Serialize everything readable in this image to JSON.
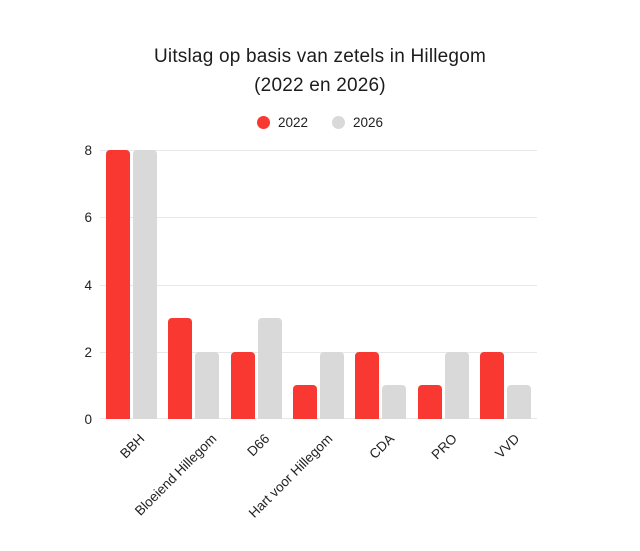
{
  "title": {
    "line1": "Uitslag op basis van zetels in Hillegom",
    "line2": "(2022 en 2026)"
  },
  "chart_data": {
    "type": "bar",
    "title": "Uitslag op basis van zetels in Hillegom (2022 en 2026)",
    "categories": [
      "BBH",
      "Bloeiend Hillegom",
      "D66",
      "Hart voor Hillegom",
      "CDA",
      "PRO",
      "VVD"
    ],
    "series": [
      {
        "name": "2022",
        "color": "#f93832",
        "values": [
          8,
          3,
          2,
          1,
          2,
          1,
          2
        ]
      },
      {
        "name": "2026",
        "color": "#d9d9d9",
        "values": [
          8,
          2,
          3,
          2,
          1,
          2,
          1
        ]
      }
    ],
    "xlabel": "",
    "ylabel": "",
    "ylim": [
      0,
      8
    ],
    "yticks": [
      0,
      2,
      4,
      6,
      8
    ],
    "grid": true,
    "legend_position": "top"
  },
  "colors": {
    "background": "#ffffff",
    "grid": "#e8e8e8",
    "text": "#1f1f1f",
    "accent_2022": "#f93832",
    "accent_2026": "#d9d9d9"
  }
}
